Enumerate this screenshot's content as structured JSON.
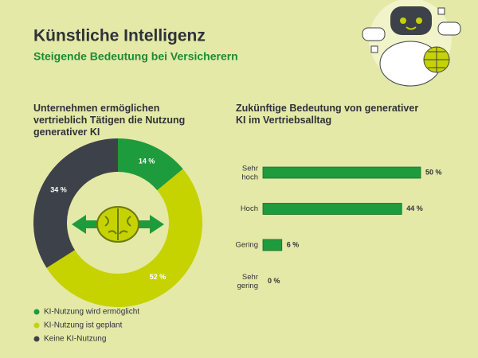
{
  "header": {
    "title": "Künstliche Intelligenz",
    "subtitle": "Steigende Bedeutung bei Versicherern"
  },
  "chart_data": [
    {
      "type": "pie",
      "title": "Unternehmen ermöglichen vertrieblich Tätigen die Nutzung generativer KI",
      "categories": [
        "KI-Nutzung wird ermöglicht",
        "KI-Nutzung ist geplant",
        "Keine KI-Nutzung"
      ],
      "values": [
        14,
        52,
        34
      ],
      "value_labels": [
        "14 %",
        "52 %",
        "34 %"
      ],
      "colors": [
        "#1e9b3c",
        "#c6d300",
        "#3d4149"
      ],
      "donut": true,
      "legend": "bottom"
    },
    {
      "type": "hbar",
      "title": "Zukünftige Bedeutung von generativer KI im Vertriebsalltag",
      "categories": [
        "Sehr hoch",
        "Hoch",
        "Gering",
        "Sehr gering"
      ],
      "values": [
        50,
        44,
        6,
        0
      ],
      "value_labels": [
        "50 %",
        "44 %",
        "6 %",
        "0 %"
      ],
      "color": "#1e9b3c",
      "xlim": [
        0,
        50
      ]
    }
  ]
}
